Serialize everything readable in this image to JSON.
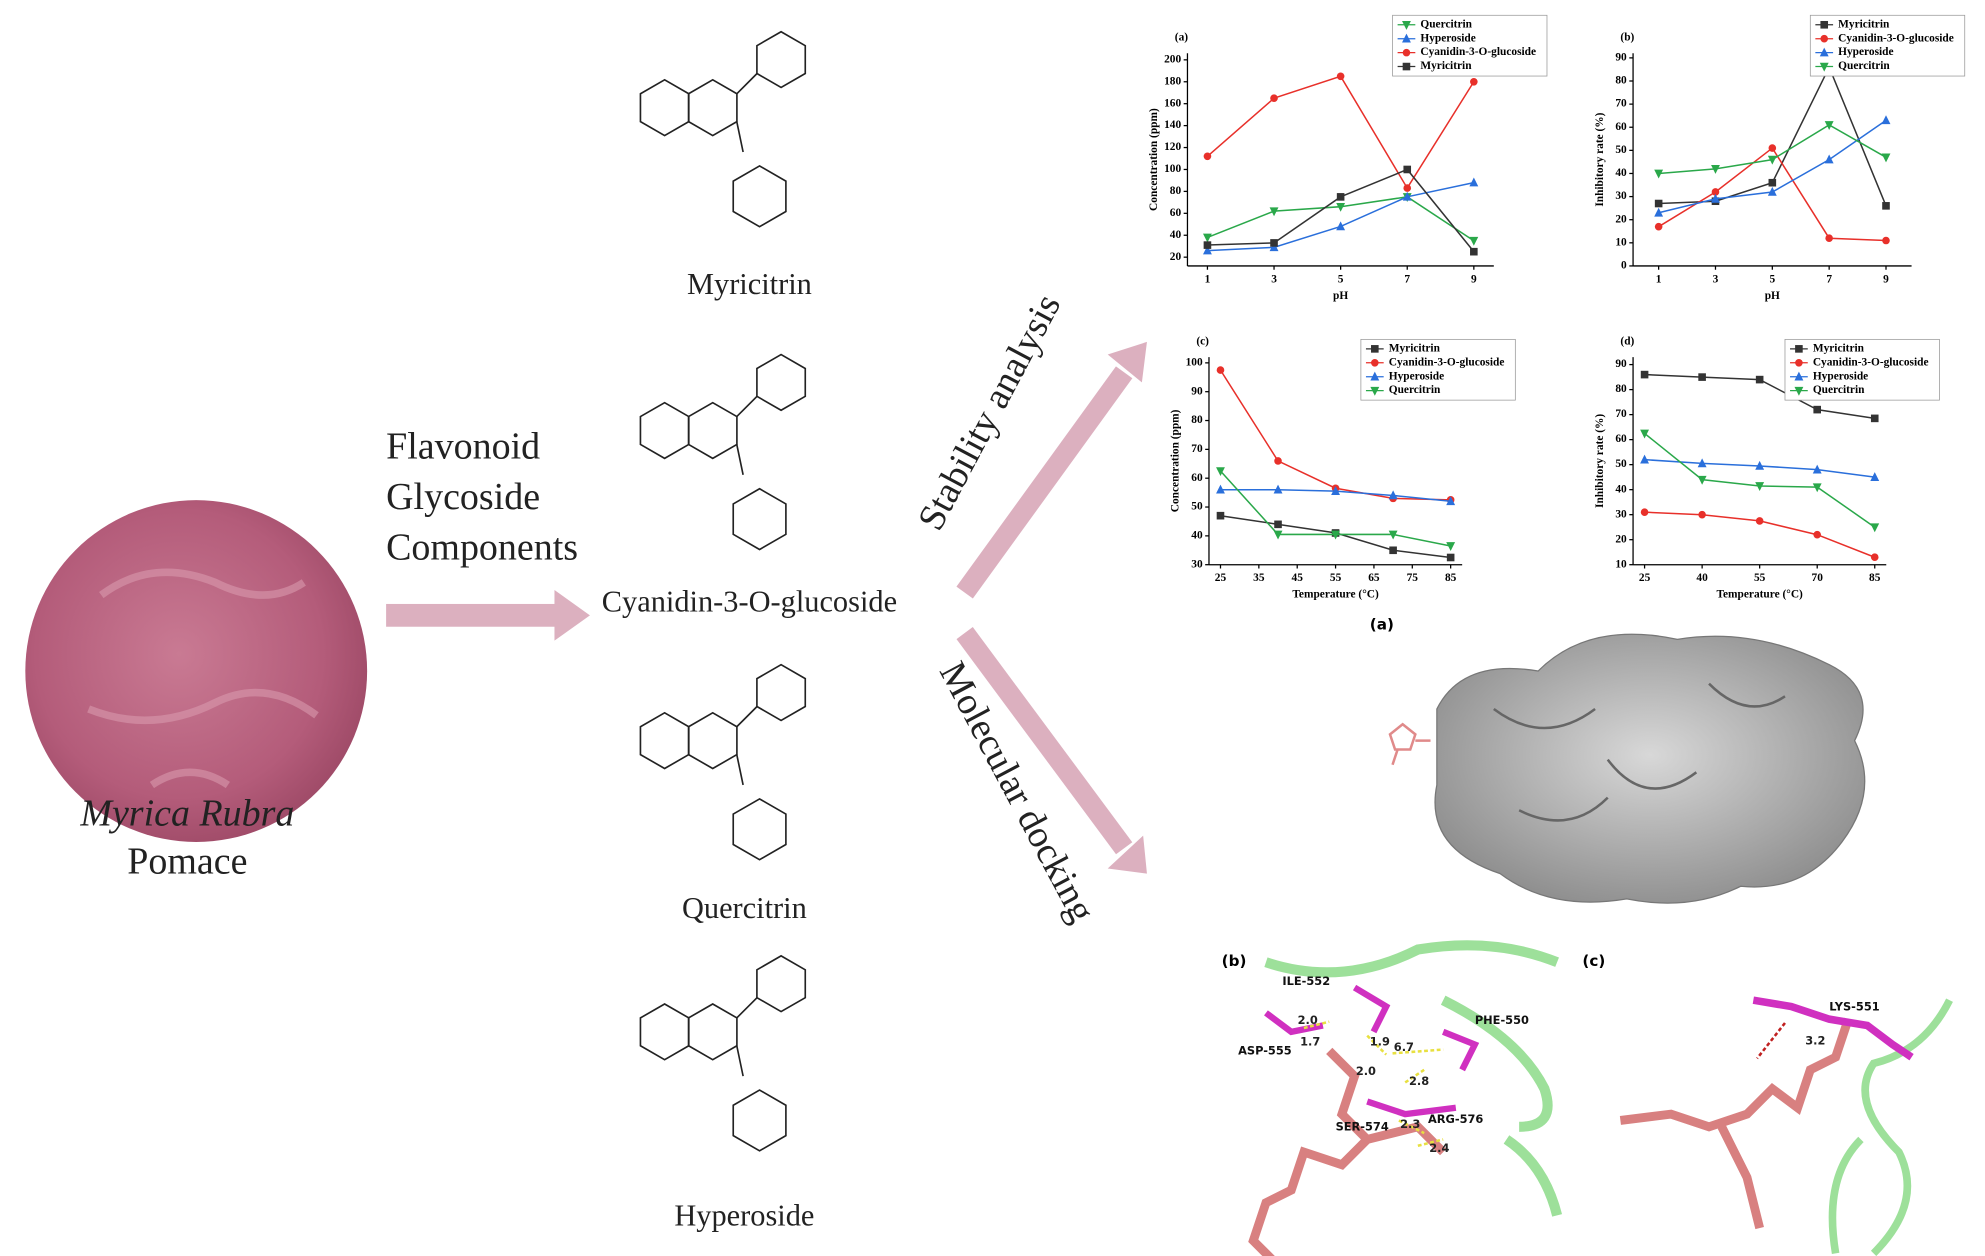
{
  "components_label": [
    "Flavonoid",
    "Glycoside",
    "Components"
  ],
  "source": {
    "name": "Myrica Rubra",
    "sub": "Pomace"
  },
  "compounds": [
    "Myricitrin",
    "Cyanidin-3-O-glucoside",
    "Quercitrin",
    "Hyperoside"
  ],
  "branches": [
    "Stability analysis",
    "Molecular docking"
  ],
  "docking": {
    "panels": [
      "(a)",
      "(b)",
      "(c)"
    ],
    "residues": [
      "ILE-552",
      "PHE-550",
      "ASP-555",
      "SER-574",
      "ARG-576",
      "LYS-551"
    ],
    "distances": [
      "2.0",
      "1.9",
      "1.7",
      "6.7",
      "2.0",
      "2.8",
      "2.3",
      "2.4",
      "3.2"
    ]
  },
  "chart_data": [
    {
      "type": "line",
      "label": "(a)",
      "x_label": "pH",
      "y_label": "Concentration (ppm)",
      "x": [
        1,
        3,
        5,
        7,
        9
      ],
      "xlim": [
        0.4,
        9.6
      ],
      "xticks": [
        1,
        3,
        5,
        7,
        9
      ],
      "ylim": [
        12,
        206
      ],
      "yticks": [
        20,
        40,
        60,
        80,
        100,
        120,
        140,
        160,
        180,
        200
      ],
      "legend": "upper right",
      "series": [
        {
          "name": "Quercitrin",
          "color": "#2aa84a",
          "marker": "down",
          "values": [
            38,
            62,
            66,
            75,
            35
          ]
        },
        {
          "name": "Hyperoside",
          "color": "#2a6fdb",
          "marker": "up",
          "values": [
            26,
            29,
            48,
            75,
            88
          ]
        },
        {
          "name": "Cyanidin-3-O-glucoside",
          "color": "#e8302a",
          "marker": "circle",
          "values": [
            112,
            165,
            185,
            83,
            180
          ]
        },
        {
          "name": "Myricitrin",
          "color": "#333333",
          "marker": "square",
          "values": [
            31,
            33,
            75,
            100,
            25
          ]
        }
      ]
    },
    {
      "type": "line",
      "label": "(b)",
      "x_label": "pH",
      "y_label": "Inhibitory rate (%)",
      "x": [
        1,
        3,
        5,
        7,
        9
      ],
      "xlim": [
        0.1,
        9.9
      ],
      "xticks": [
        1,
        3,
        5,
        7,
        9
      ],
      "ylim": [
        0,
        92
      ],
      "yticks": [
        0,
        10,
        20,
        30,
        40,
        50,
        60,
        70,
        80,
        90
      ],
      "legend": "upper right",
      "series": [
        {
          "name": "Myricitrin",
          "color": "#333333",
          "marker": "square",
          "values": [
            27,
            28,
            36,
            86,
            26
          ]
        },
        {
          "name": "Cyanidin-3-O-glucoside",
          "color": "#e8302a",
          "marker": "circle",
          "values": [
            17,
            32,
            51,
            12,
            11
          ]
        },
        {
          "name": "Hyperoside",
          "color": "#2a6fdb",
          "marker": "up",
          "values": [
            23,
            29,
            32,
            46,
            63
          ]
        },
        {
          "name": "Quercitrin",
          "color": "#2aa84a",
          "marker": "down",
          "values": [
            40,
            42,
            46,
            61,
            47
          ]
        }
      ]
    },
    {
      "type": "line",
      "label": "(c)",
      "x_label": "Temperature (°C)",
      "y_label": "Concentration (ppm)",
      "x": [
        25,
        40,
        55,
        70,
        85
      ],
      "xlim": [
        22,
        88
      ],
      "xticks": [
        25,
        35,
        45,
        55,
        65,
        75,
        85
      ],
      "ylim": [
        30,
        102
      ],
      "yticks": [
        30,
        40,
        50,
        60,
        70,
        80,
        90,
        100
      ],
      "legend": "upper right",
      "series": [
        {
          "name": "Myricitrin",
          "color": "#333333",
          "marker": "square",
          "values": [
            47,
            44,
            41,
            35,
            32.5
          ]
        },
        {
          "name": "Cyanidin-3-O-glucoside",
          "color": "#e8302a",
          "marker": "circle",
          "values": [
            97.5,
            66,
            56.5,
            53,
            52.5
          ]
        },
        {
          "name": "Hyperoside",
          "color": "#2a6fdb",
          "marker": "up",
          "values": [
            56,
            56,
            55.5,
            54,
            52
          ]
        },
        {
          "name": "Quercitrin",
          "color": "#2aa84a",
          "marker": "down",
          "values": [
            62.5,
            40.5,
            40.5,
            40.5,
            36.5
          ]
        }
      ]
    },
    {
      "type": "line",
      "label": "(d)",
      "x_label": "Temperature (°C)",
      "y_label": "Inhibitory rate (%)",
      "x": [
        25,
        40,
        55,
        70,
        85
      ],
      "xlim": [
        22,
        88
      ],
      "xticks": [
        25,
        40,
        55,
        70,
        85
      ],
      "ylim": [
        10,
        93
      ],
      "yticks": [
        10,
        20,
        30,
        40,
        50,
        60,
        70,
        80,
        90
      ],
      "legend": "upper right",
      "series": [
        {
          "name": "Myricitrin",
          "color": "#333333",
          "marker": "square",
          "values": [
            86,
            85,
            84,
            72,
            68.5
          ]
        },
        {
          "name": "Cyanidin-3-O-glucoside",
          "color": "#e8302a",
          "marker": "circle",
          "values": [
            31,
            30,
            27.5,
            22,
            13
          ]
        },
        {
          "name": "Hyperoside",
          "color": "#2a6fdb",
          "marker": "up",
          "values": [
            52,
            50.5,
            49.5,
            48,
            45
          ]
        },
        {
          "name": "Quercitrin",
          "color": "#2aa84a",
          "marker": "down",
          "values": [
            62.5,
            44,
            41.5,
            41,
            25
          ]
        }
      ]
    }
  ]
}
